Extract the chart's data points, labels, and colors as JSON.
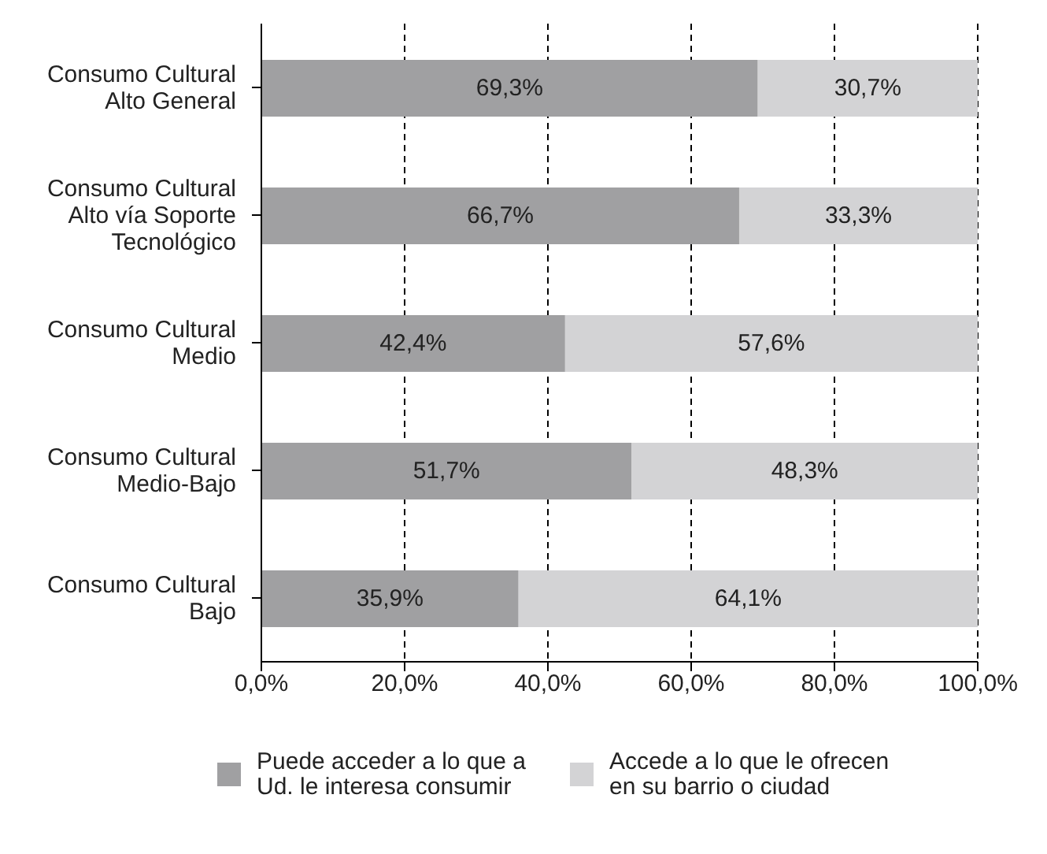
{
  "chart_data": {
    "type": "bar",
    "orientation": "horizontal",
    "stacked": true,
    "categories": [
      "Consumo Cultural Alto General",
      "Consumo Cultural Alto vía Soporte Tecnológico",
      "Consumo Cultural Medio",
      "Consumo Cultural Medio-Bajo",
      "Consumo Cultural Bajo"
    ],
    "series": [
      {
        "name": "Puede acceder a lo que a Ud. le interesa consumir",
        "color": "#a0a0a2",
        "values": [
          69.3,
          66.7,
          42.4,
          51.7,
          35.9
        ],
        "value_labels": [
          "69,3%",
          "66,7%",
          "42,4%",
          "51,7%",
          "35,9%"
        ]
      },
      {
        "name": "Accede a lo que le ofrecen en su barrio o ciudad",
        "color": "#d3d3d5",
        "values": [
          30.7,
          33.3,
          57.6,
          48.3,
          64.1
        ],
        "value_labels": [
          "30,7%",
          "33,3%",
          "57,6%",
          "48,3%",
          "64,1%"
        ]
      }
    ],
    "xlim": [
      0,
      100
    ],
    "xticks": [
      {
        "value": 0,
        "label": "0,0%"
      },
      {
        "value": 20,
        "label": "20,0%"
      },
      {
        "value": 40,
        "label": "40,0%"
      },
      {
        "value": 60,
        "label": "60,0%"
      },
      {
        "value": 80,
        "label": "80,0%"
      },
      {
        "value": 100,
        "label": "100,0%"
      }
    ],
    "grid": "x",
    "legend": "bottom"
  }
}
